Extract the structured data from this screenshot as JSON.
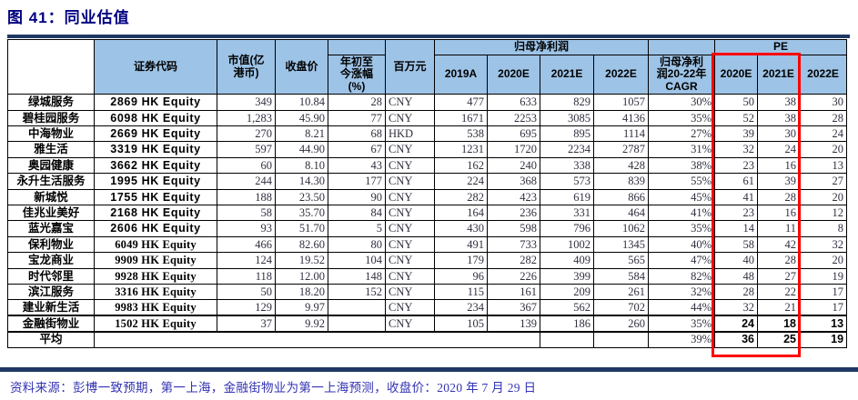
{
  "title": "图 41：同业估值",
  "footer": "资料来源：彭博一致预期，第一上海，金融街物业为第一上海预测，收盘价：2020 年 7 月 29 日",
  "colors": {
    "title_navy": "#000080",
    "bar_navy": "#1F3864",
    "header_blue": "#9DC3E6",
    "highlight_red": "#FF0000",
    "source_blue": "#3333B4"
  },
  "table": {
    "header": {
      "code": "证券代码",
      "mktcap": "市值(亿\n港币)",
      "close": "收盘价",
      "ytd": "年初至\n今涨幅\n(%)",
      "unit": "百万元",
      "profit_group": "归母净利润",
      "years": [
        "2019A",
        "2020E",
        "2021E",
        "2022E"
      ],
      "cagr": "归母净利\n润20-22年\nCAGR",
      "pe_group": "PE",
      "pe_years": [
        "2020E",
        "2021E",
        "2022E"
      ]
    },
    "rows": [
      {
        "name": "绿城服务",
        "code": "2869 HK Equity",
        "mktcap": "349",
        "close": "10.84",
        "ytd": "28",
        "cur": "CNY",
        "p2019": "477",
        "p2020": "633",
        "p2021": "829",
        "p2022": "1057",
        "cagr": "30%",
        "pe2020": "50",
        "pe2021": "38",
        "pe2022": "30"
      },
      {
        "name": "碧桂园服务",
        "code": "6098 HK Equity",
        "mktcap": "1,283",
        "close": "45.90",
        "ytd": "77",
        "cur": "CNY",
        "p2019": "1671",
        "p2020": "2253",
        "p2021": "3085",
        "p2022": "4136",
        "cagr": "35%",
        "pe2020": "52",
        "pe2021": "38",
        "pe2022": "28"
      },
      {
        "name": "中海物业",
        "code": "2669 HK Equity",
        "mktcap": "270",
        "close": "8.21",
        "ytd": "68",
        "cur": "HKD",
        "p2019": "538",
        "p2020": "695",
        "p2021": "895",
        "p2022": "1114",
        "cagr": "27%",
        "pe2020": "39",
        "pe2021": "30",
        "pe2022": "24"
      },
      {
        "name": "雅生活",
        "code": "3319 HK Equity",
        "mktcap": "597",
        "close": "44.90",
        "ytd": "67",
        "cur": "CNY",
        "p2019": "1231",
        "p2020": "1720",
        "p2021": "2234",
        "p2022": "2787",
        "cagr": "31%",
        "pe2020": "32",
        "pe2021": "24",
        "pe2022": "20"
      },
      {
        "name": "奥园健康",
        "code": "3662 HK Equity",
        "mktcap": "60",
        "close": "8.10",
        "ytd": "43",
        "cur": "CNY",
        "p2019": "162",
        "p2020": "240",
        "p2021": "338",
        "p2022": "428",
        "cagr": "38%",
        "pe2020": "23",
        "pe2021": "16",
        "pe2022": "13"
      },
      {
        "name": "永升生活服务",
        "code": "1995 HK Equity",
        "mktcap": "244",
        "close": "14.30",
        "ytd": "177",
        "cur": "CNY",
        "p2019": "224",
        "p2020": "368",
        "p2021": "573",
        "p2022": "839",
        "cagr": "55%",
        "pe2020": "61",
        "pe2021": "39",
        "pe2022": "27"
      },
      {
        "name": "新城悦",
        "code": "1755 HK Equity",
        "mktcap": "188",
        "close": "23.50",
        "ytd": "90",
        "cur": "CNY",
        "p2019": "282",
        "p2020": "423",
        "p2021": "619",
        "p2022": "866",
        "cagr": "45%",
        "pe2020": "41",
        "pe2021": "28",
        "pe2022": "20"
      },
      {
        "name": "佳兆业美好",
        "code": "2168 HK Equity",
        "mktcap": "58",
        "close": "35.70",
        "ytd": "84",
        "cur": "CNY",
        "p2019": "164",
        "p2020": "236",
        "p2021": "331",
        "p2022": "464",
        "cagr": "41%",
        "pe2020": "23",
        "pe2021": "16",
        "pe2022": "12"
      },
      {
        "name": "蓝光嘉宝",
        "code": "2606 HK Equity",
        "mktcap": "93",
        "close": "51.70",
        "ytd": "5",
        "cur": "CNY",
        "p2019": "430",
        "p2020": "598",
        "p2021": "796",
        "p2022": "1062",
        "cagr": "35%",
        "pe2020": "14",
        "pe2021": "11",
        "pe2022": "8"
      },
      {
        "name": "保利物业",
        "code": "6049 HK Equity",
        "serif": true,
        "mktcap": "466",
        "close": "82.60",
        "ytd": "80",
        "cur": "CNY",
        "p2019": "491",
        "p2020": "733",
        "p2021": "1002",
        "p2022": "1345",
        "cagr": "40%",
        "pe2020": "58",
        "pe2021": "42",
        "pe2022": "32"
      },
      {
        "name": "宝龙商业",
        "code": "9909 HK Equity",
        "serif": true,
        "mktcap": "124",
        "close": "19.52",
        "ytd": "104",
        "cur": "CNY",
        "p2019": "179",
        "p2020": "282",
        "p2021": "409",
        "p2022": "565",
        "cagr": "47%",
        "pe2020": "40",
        "pe2021": "28",
        "pe2022": "20"
      },
      {
        "name": "时代邻里",
        "code": "9928 HK Equity",
        "serif": true,
        "mktcap": "118",
        "close": "12.00",
        "ytd": "148",
        "cur": "CNY",
        "p2019": "96",
        "p2020": "226",
        "p2021": "399",
        "p2022": "584",
        "cagr": "82%",
        "pe2020": "48",
        "pe2021": "27",
        "pe2022": "19"
      },
      {
        "name": "滨江服务",
        "code": "3316 HK Equity",
        "serif": true,
        "mktcap": "50",
        "close": "18.20",
        "ytd": "152",
        "cur": "CNY",
        "p2019": "115",
        "p2020": "161",
        "p2021": "209",
        "p2022": "261",
        "cagr": "32%",
        "pe2020": "28",
        "pe2021": "22",
        "pe2022": "17"
      },
      {
        "name": "建业新生活",
        "code": "9983 HK Equity",
        "serif": true,
        "mktcap": "129",
        "close": "9.97",
        "ytd": "",
        "cur": "CNY",
        "p2019": "234",
        "p2020": "367",
        "p2021": "562",
        "p2022": "702",
        "cagr": "44%",
        "pe2020": "32",
        "pe2021": "21",
        "pe2022": "17"
      },
      {
        "name": "金融街物业",
        "code": "1502 HK Equity",
        "serif": true,
        "pe_bold": true,
        "thick_top": true,
        "mktcap": "37",
        "close": "9.92",
        "ytd": "",
        "cur": "CNY",
        "p2019": "105",
        "p2020": "139",
        "p2021": "186",
        "p2022": "260",
        "cagr": "35%",
        "pe2020": "24",
        "pe2021": "18",
        "pe2022": "13"
      }
    ],
    "average": {
      "label": "平均",
      "cagr": "39%",
      "pe2020": "36",
      "pe2021": "25",
      "pe2022": "19"
    }
  }
}
